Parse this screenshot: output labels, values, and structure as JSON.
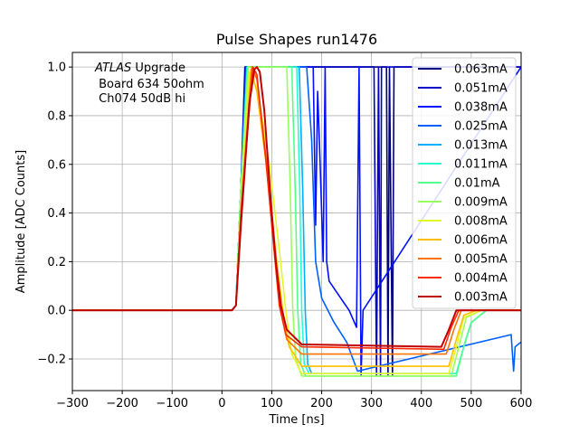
{
  "chart_data": {
    "type": "line",
    "title": "Pulse Shapes run1476",
    "xlabel": "Time [ns]",
    "ylabel": "Amplitude [ADC Counts]",
    "xlim": [
      -300,
      600
    ],
    "ylim": [
      -0.33,
      1.06
    ],
    "xticks": [
      -300,
      -200,
      -100,
      0,
      100,
      200,
      300,
      400,
      500,
      600
    ],
    "yticks": [
      -0.2,
      0.0,
      0.2,
      0.4,
      0.6,
      0.8,
      1.0
    ],
    "grid": true,
    "legend_position": "top-right",
    "annotation": {
      "line1_italic": "ATLAS",
      "line1_rest": " Upgrade",
      "line2": " Board 634 50ohm",
      "line3": " Ch074 50dB hi"
    },
    "series": [
      {
        "name": "0.063mA",
        "color": "#00007f",
        "points": [
          [
            -300,
            0
          ],
          [
            20,
            0
          ],
          [
            28,
            0.02
          ],
          [
            38,
            0.5
          ],
          [
            46,
            1.0
          ],
          [
            330,
            1.0
          ],
          [
            333,
            -0.27
          ],
          [
            336,
            1.0
          ],
          [
            342,
            -0.27
          ],
          [
            345,
            1.0
          ],
          [
            600,
            1.0
          ]
        ]
      },
      {
        "name": "0.051mA",
        "color": "#0000c8",
        "points": [
          [
            -300,
            0
          ],
          [
            20,
            0
          ],
          [
            28,
            0.02
          ],
          [
            38,
            0.5
          ],
          [
            47,
            1.0
          ],
          [
            305,
            1.0
          ],
          [
            310,
            -0.27
          ],
          [
            314,
            1.0
          ],
          [
            318,
            -0.27
          ],
          [
            320,
            1.0
          ],
          [
            600,
            1.0
          ]
        ]
      },
      {
        "name": "0.038mA",
        "color": "#0010ff",
        "points": [
          [
            -300,
            0
          ],
          [
            20,
            0
          ],
          [
            28,
            0.02
          ],
          [
            38,
            0.5
          ],
          [
            48,
            1.0
          ],
          [
            183,
            1.0
          ],
          [
            188,
            0.35
          ],
          [
            192,
            0.9
          ],
          [
            197,
            0.6
          ],
          [
            203,
            0.2
          ],
          [
            207,
            1.0
          ],
          [
            210,
            0.2
          ],
          [
            215,
            0.12
          ],
          [
            235,
            0.06
          ],
          [
            255,
            0.0
          ],
          [
            270,
            -0.07
          ],
          [
            275,
            1.0
          ],
          [
            279,
            -0.27
          ],
          [
            283,
            0.0
          ],
          [
            600,
            1.0
          ]
        ]
      },
      {
        "name": "0.025mA",
        "color": "#0060ff",
        "points": [
          [
            -300,
            0
          ],
          [
            20,
            0
          ],
          [
            28,
            0.02
          ],
          [
            38,
            0.5
          ],
          [
            49,
            1.0
          ],
          [
            170,
            1.0
          ],
          [
            180,
            0.7
          ],
          [
            188,
            0.2
          ],
          [
            200,
            0.05
          ],
          [
            225,
            -0.05
          ],
          [
            250,
            -0.13
          ],
          [
            272,
            -0.25
          ],
          [
            580,
            -0.1
          ],
          [
            585,
            -0.25
          ],
          [
            588,
            -0.15
          ],
          [
            600,
            -0.13
          ]
        ]
      },
      {
        "name": "0.013mA",
        "color": "#00b0ff",
        "points": [
          [
            -300,
            0
          ],
          [
            20,
            0
          ],
          [
            28,
            0.02
          ],
          [
            38,
            0.5
          ],
          [
            50,
            1.0
          ],
          [
            155,
            1.0
          ],
          [
            162,
            0.5
          ],
          [
            167,
            0.0
          ],
          [
            172,
            -0.22
          ],
          [
            180,
            -0.26
          ],
          [
            470,
            -0.26
          ],
          [
            485,
            -0.15
          ],
          [
            500,
            -0.05
          ],
          [
            530,
            0.0
          ],
          [
            600,
            0.0
          ]
        ]
      },
      {
        "name": "0.011mA",
        "color": "#29ffce",
        "points": [
          [
            -300,
            0
          ],
          [
            20,
            0
          ],
          [
            28,
            0.02
          ],
          [
            38,
            0.5
          ],
          [
            51,
            1.0
          ],
          [
            150,
            1.0
          ],
          [
            156,
            0.5
          ],
          [
            160,
            0.0
          ],
          [
            165,
            -0.22
          ],
          [
            175,
            -0.26
          ],
          [
            470,
            -0.26
          ],
          [
            485,
            -0.15
          ],
          [
            500,
            -0.05
          ],
          [
            530,
            0.0
          ],
          [
            600,
            0.0
          ]
        ]
      },
      {
        "name": "0.01mA",
        "color": "#55ff8a",
        "points": [
          [
            -300,
            0
          ],
          [
            20,
            0
          ],
          [
            28,
            0.02
          ],
          [
            38,
            0.5
          ],
          [
            52,
            1.0
          ],
          [
            140,
            1.0
          ],
          [
            147,
            0.5
          ],
          [
            152,
            0.0
          ],
          [
            158,
            -0.22
          ],
          [
            168,
            -0.27
          ],
          [
            470,
            -0.27
          ],
          [
            485,
            -0.15
          ],
          [
            500,
            -0.05
          ],
          [
            530,
            0.0
          ],
          [
            600,
            0.0
          ]
        ]
      },
      {
        "name": "0.009mA",
        "color": "#9aff5c",
        "points": [
          [
            -300,
            0
          ],
          [
            20,
            0
          ],
          [
            28,
            0.02
          ],
          [
            38,
            0.5
          ],
          [
            53,
            1.0
          ],
          [
            130,
            1.0
          ],
          [
            137,
            0.5
          ],
          [
            142,
            0.0
          ],
          [
            148,
            -0.2
          ],
          [
            160,
            -0.27
          ],
          [
            460,
            -0.27
          ],
          [
            475,
            -0.15
          ],
          [
            490,
            -0.03
          ],
          [
            520,
            0.0
          ],
          [
            600,
            0.0
          ]
        ]
      },
      {
        "name": "0.008mA",
        "color": "#e5f52b",
        "points": [
          [
            -300,
            0
          ],
          [
            20,
            0
          ],
          [
            28,
            0.02
          ],
          [
            38,
            0.4
          ],
          [
            55,
            0.98
          ],
          [
            72,
            0.9
          ],
          [
            95,
            0.6
          ],
          [
            115,
            0.25
          ],
          [
            128,
            0.0
          ],
          [
            140,
            -0.18
          ],
          [
            160,
            -0.26
          ],
          [
            455,
            -0.26
          ],
          [
            470,
            -0.15
          ],
          [
            485,
            -0.03
          ],
          [
            520,
            0.0
          ],
          [
            600,
            0.0
          ]
        ]
      },
      {
        "name": "0.006mA",
        "color": "#ffbf00",
        "points": [
          [
            -300,
            0
          ],
          [
            20,
            0
          ],
          [
            28,
            0.02
          ],
          [
            38,
            0.4
          ],
          [
            58,
            0.99
          ],
          [
            70,
            0.9
          ],
          [
            92,
            0.55
          ],
          [
            110,
            0.2
          ],
          [
            122,
            0.0
          ],
          [
            135,
            -0.15
          ],
          [
            160,
            -0.23
          ],
          [
            455,
            -0.23
          ],
          [
            470,
            -0.12
          ],
          [
            485,
            -0.02
          ],
          [
            510,
            0.0
          ],
          [
            600,
            0.0
          ]
        ]
      },
      {
        "name": "0.005mA",
        "color": "#ff7300",
        "points": [
          [
            -300,
            0
          ],
          [
            20,
            0
          ],
          [
            28,
            0.02
          ],
          [
            38,
            0.4
          ],
          [
            60,
            1.0
          ],
          [
            70,
            0.95
          ],
          [
            90,
            0.6
          ],
          [
            106,
            0.25
          ],
          [
            118,
            0.0
          ],
          [
            130,
            -0.12
          ],
          [
            160,
            -0.18
          ],
          [
            450,
            -0.18
          ],
          [
            465,
            -0.08
          ],
          [
            480,
            0.0
          ],
          [
            600,
            0.0
          ]
        ]
      },
      {
        "name": "0.004mA",
        "color": "#ff2a00",
        "points": [
          [
            -300,
            0
          ],
          [
            20,
            0
          ],
          [
            28,
            0.02
          ],
          [
            38,
            0.4
          ],
          [
            62,
            1.0
          ],
          [
            70,
            0.97
          ],
          [
            88,
            0.62
          ],
          [
            103,
            0.28
          ],
          [
            115,
            0.02
          ],
          [
            128,
            -0.1
          ],
          [
            160,
            -0.15
          ],
          [
            445,
            -0.16
          ],
          [
            460,
            -0.07
          ],
          [
            475,
            0.0
          ],
          [
            600,
            0.0
          ]
        ]
      },
      {
        "name": "0.003mA",
        "color": "#c00000",
        "points": [
          [
            -300,
            0
          ],
          [
            20,
            0
          ],
          [
            28,
            0.02
          ],
          [
            38,
            0.35
          ],
          [
            55,
            0.85
          ],
          [
            65,
            0.99
          ],
          [
            70,
            1.0
          ],
          [
            76,
            0.98
          ],
          [
            85,
            0.82
          ],
          [
            98,
            0.45
          ],
          [
            108,
            0.2
          ],
          [
            118,
            0.02
          ],
          [
            130,
            -0.08
          ],
          [
            160,
            -0.14
          ],
          [
            440,
            -0.15
          ],
          [
            455,
            -0.08
          ],
          [
            470,
            0.0
          ],
          [
            600,
            0.0
          ]
        ]
      }
    ]
  }
}
